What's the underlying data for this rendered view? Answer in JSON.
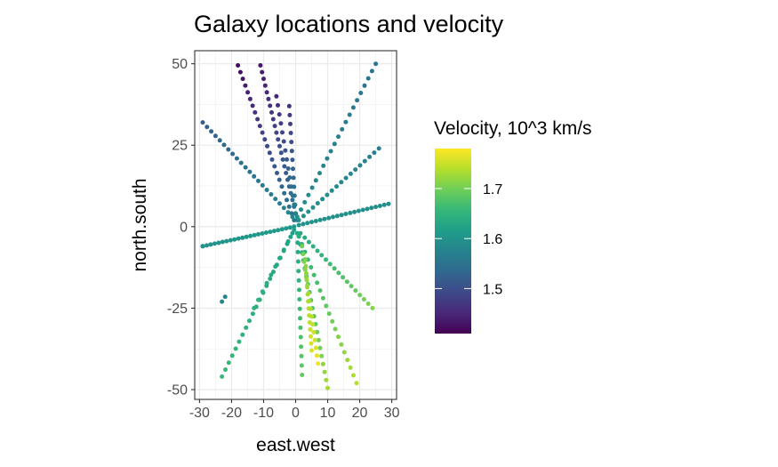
{
  "chart_data": {
    "type": "scatter",
    "title": "Galaxy locations and velocity",
    "xlabel": "east.west",
    "ylabel": "north.south",
    "xlim": [
      -31.5,
      31.5
    ],
    "ylim": [
      -53,
      54
    ],
    "xticks": [
      -30,
      -20,
      -10,
      0,
      10,
      20,
      30
    ],
    "yticks": [
      -50,
      -25,
      0,
      25,
      50
    ],
    "grid": true,
    "legend": {
      "title": "Velocity, 10^3 km/s",
      "position": "right",
      "ticks": [
        1.5,
        1.6,
        1.7
      ],
      "range": [
        1.41,
        1.78
      ]
    },
    "colormap": [
      "#440154",
      "#482878",
      "#3e4989",
      "#31688e",
      "#26828e",
      "#1f9e89",
      "#35b779",
      "#6ece58",
      "#b5de2b",
      "#fde725"
    ],
    "rays": [
      {
        "x0": -18,
        "y0": 49.5,
        "x1": -0.5,
        "y1": 2,
        "c0": 1.42,
        "c1": 1.56,
        "n": 24
      },
      {
        "x0": -11,
        "y0": 49.5,
        "x1": 0.5,
        "y1": 2,
        "c0": 1.43,
        "c1": 1.56,
        "n": 24
      },
      {
        "x0": -6,
        "y0": 40,
        "x1": 0,
        "y1": 4,
        "c0": 1.45,
        "c1": 1.57,
        "n": 14
      },
      {
        "x0": -2,
        "y0": 37,
        "x1": 0,
        "y1": 4,
        "c0": 1.46,
        "c1": 1.57,
        "n": 13
      },
      {
        "x0": -29,
        "y0": 32,
        "x1": -1,
        "y1": 3,
        "c0": 1.52,
        "c1": 1.58,
        "n": 22
      },
      {
        "x0": 25,
        "y0": 50,
        "x1": 0.5,
        "y1": 3,
        "c0": 1.55,
        "c1": 1.59,
        "n": 22
      },
      {
        "x0": 26,
        "y0": 24,
        "x1": 1,
        "y1": 2,
        "c0": 1.57,
        "c1": 1.6,
        "n": 18
      },
      {
        "x0": 29,
        "y0": 7,
        "x1": 1,
        "y1": 0.5,
        "c0": 1.59,
        "c1": 1.6,
        "n": 22
      },
      {
        "x0": -29,
        "y0": -6,
        "x1": -0.5,
        "y1": 0,
        "c0": 1.6,
        "c1": 1.61,
        "n": 24
      },
      {
        "x0": -23,
        "y0": -23,
        "x1": -22,
        "y1": -21.5,
        "c0": 1.58,
        "c1": 1.58,
        "n": 2
      },
      {
        "x0": -29,
        "y0": -6,
        "x1": -0.5,
        "y1": 0,
        "c0": 1.6,
        "c1": 1.61,
        "n": 1
      },
      {
        "x0": -23,
        "y0": -46,
        "x1": -0.5,
        "y1": -1,
        "c0": 1.66,
        "c1": 1.62,
        "n": 22
      },
      {
        "x0": -13,
        "y0": -25,
        "x1": -1,
        "y1": -2,
        "c0": 1.65,
        "c1": 1.62,
        "n": 10
      },
      {
        "x0": 2,
        "y0": -45.5,
        "x1": 0.5,
        "y1": -2,
        "c0": 1.69,
        "c1": 1.63,
        "n": 16
      },
      {
        "x0": 10,
        "y0": -49.5,
        "x1": 1,
        "y1": -3,
        "c0": 1.73,
        "c1": 1.63,
        "n": 20
      },
      {
        "x0": 19,
        "y0": -48,
        "x1": 1,
        "y1": -3,
        "c0": 1.74,
        "c1": 1.64,
        "n": 20
      },
      {
        "x0": 24,
        "y0": -25,
        "x1": 1.5,
        "y1": -2,
        "c0": 1.71,
        "c1": 1.63,
        "n": 18
      },
      {
        "x0": 7,
        "y0": -42,
        "x1": 2,
        "y1": -6,
        "c0": 1.77,
        "c1": 1.7,
        "n": 16
      },
      {
        "x0": 5,
        "y0": -38,
        "x1": 3,
        "y1": -10,
        "c0": 1.76,
        "c1": 1.71,
        "n": 14
      }
    ]
  }
}
